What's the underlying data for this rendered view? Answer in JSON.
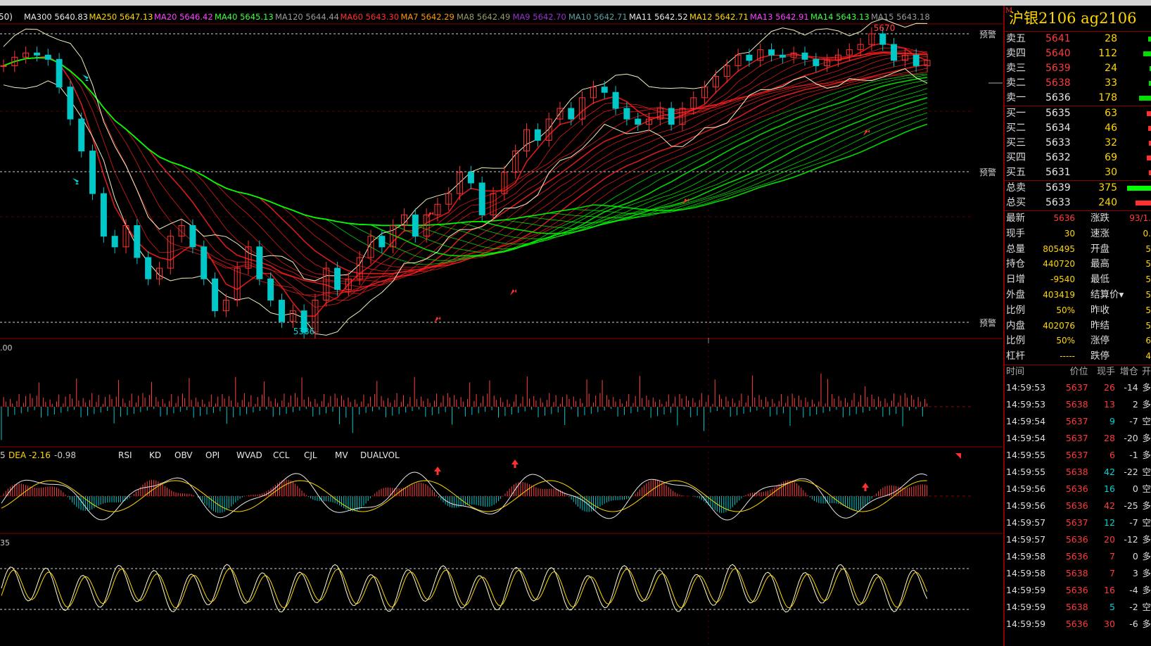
{
  "colors": {
    "up": "#ff3232",
    "down": "#00c8c8",
    "ma_green": "#00ff00",
    "ma_red": "#ff1e1e",
    "grid": "#8b0000",
    "accent": "#ffd700"
  },
  "header": {
    "prefix": "50)",
    "ma_values": [
      {
        "label": "MA300 5640.83",
        "color": "#e8e8e8"
      },
      {
        "label": "MA250 5647.13",
        "color": "#ffd700"
      },
      {
        "label": "MA20 5646.42",
        "color": "#ff40ff"
      },
      {
        "label": "MA40 5645.13",
        "color": "#40ff40"
      },
      {
        "label": "MA120 5644.44",
        "color": "#9a9a9a"
      },
      {
        "label": "MA60 5643.30",
        "color": "#ff3030"
      },
      {
        "label": "MA7 5642.29",
        "color": "#ff9900"
      },
      {
        "label": "MA8 5642.49",
        "color": "#999966"
      },
      {
        "label": "MA9 5642.70",
        "color": "#9932cc"
      },
      {
        "label": "MA10 5642.71",
        "color": "#5f9ea0"
      },
      {
        "label": "MA11 5642.52",
        "color": "#e8e8e8"
      },
      {
        "label": "MA12 5642.71",
        "color": "#ffd700"
      },
      {
        "label": "MA13 5642.91",
        "color": "#ff40ff"
      },
      {
        "label": "MA14 5643.13",
        "color": "#40ff40"
      },
      {
        "label": "MA15 5643.18",
        "color": "#9a9a9a"
      }
    ]
  },
  "price_panel": {
    "warn_label": "预警",
    "high_label": "5670",
    "low_label": "5386"
  },
  "volume_panel": {
    "label": ".00"
  },
  "macd_panel": {
    "header_left": "5",
    "dea_label": "DEA -2.16",
    "macd_value": "-0.98",
    "tabs": [
      "RSI",
      "KD",
      "OBV",
      "OPI",
      "WVAD",
      "CCL",
      "CJL",
      "MV",
      "DUALVOL"
    ]
  },
  "osc_panel": {
    "label": "35"
  },
  "chart_data": {
    "type": "candlestick",
    "title": "",
    "ylim": [
      5386,
      5670
    ],
    "close_path": [
      5640,
      5648,
      5652,
      5650,
      5646,
      5620,
      5590,
      5560,
      5520,
      5480,
      5470,
      5490,
      5460,
      5440,
      5450,
      5480,
      5490,
      5470,
      5440,
      5410,
      5420,
      5450,
      5470,
      5440,
      5420,
      5400,
      5410,
      5390,
      5420,
      5450,
      5430,
      5440,
      5460,
      5480,
      5470,
      5490,
      5500,
      5480,
      5500,
      5510,
      5520,
      5540,
      5530,
      5500,
      5520,
      5540,
      5560,
      5580,
      5570,
      5590,
      5600,
      5590,
      5610,
      5620,
      5615,
      5600,
      5590,
      5585,
      5590,
      5600,
      5585,
      5600,
      5610,
      5620,
      5630,
      5640,
      5650,
      5645,
      5655,
      5650,
      5648,
      5652,
      5646,
      5640,
      5645,
      5650,
      5655,
      5660,
      5670,
      5660,
      5645,
      5650,
      5640,
      5645
    ],
    "events": {
      "high": 5670,
      "low": 5386
    }
  },
  "sidebar": {
    "symbol_marker": "M",
    "symbol": "沪银2106  ag2106",
    "asks": [
      {
        "label": "卖五",
        "price": "5641",
        "vol": "28",
        "bar": 0.08
      },
      {
        "label": "卖四",
        "price": "5640",
        "vol": "112",
        "bar": 0.22
      },
      {
        "label": "卖三",
        "price": "5639",
        "vol": "24",
        "bar": 0.05
      },
      {
        "label": "卖二",
        "price": "5638",
        "vol": "33",
        "bar": 0.06
      },
      {
        "label": "卖一",
        "price": "5636",
        "vol": "178",
        "bar": 0.35
      }
    ],
    "bids": [
      {
        "label": "买一",
        "price": "5635",
        "vol": "63",
        "bar": 0.12
      },
      {
        "label": "买二",
        "price": "5634",
        "vol": "46",
        "bar": 0.09
      },
      {
        "label": "买三",
        "price": "5633",
        "vol": "32",
        "bar": 0.06
      },
      {
        "label": "买四",
        "price": "5632",
        "vol": "69",
        "bar": 0.13
      },
      {
        "label": "买五",
        "price": "5631",
        "vol": "30",
        "bar": 0.06
      }
    ],
    "totals": [
      {
        "label": "总卖",
        "price": "5639",
        "vol": "375",
        "bar": 0.7,
        "color": "#00ff00"
      },
      {
        "label": "总买",
        "price": "5633",
        "vol": "240",
        "bar": 0.45,
        "color": "#ff3030"
      }
    ],
    "stats": [
      {
        "l1": "最新",
        "v1": "5636",
        "l2": "涨跌",
        "v2": "93/1."
      },
      {
        "l1": "现手",
        "v1": "30",
        "l2": "速涨",
        "v2": "0."
      },
      {
        "l1": "总量",
        "v1": "805495",
        "l2": "开盘",
        "v2": "5"
      },
      {
        "l1": "持仓",
        "v1": "440720",
        "l2": "最高",
        "v2": "5"
      },
      {
        "l1": "日增",
        "v1": "-9540",
        "l2": "最低",
        "v2": "5"
      },
      {
        "l1": "外盘",
        "v1": "403419",
        "l2": "结算价",
        "v2": "5"
      },
      {
        "l1": "比例",
        "v1": "50%",
        "l2": "昨收",
        "v2": "5"
      },
      {
        "l1": "内盘",
        "v1": "402076",
        "l2": "昨结",
        "v2": "5"
      },
      {
        "l1": "比例",
        "v1": "50%",
        "l2": "涨停",
        "v2": "6"
      },
      {
        "l1": "杠杆",
        "v1": "-----",
        "l2": "跌停",
        "v2": "4"
      }
    ],
    "ticks_header": {
      "time": "时间",
      "price": "价位",
      "vol": "现手",
      "oi": "增仓",
      "type": "开"
    },
    "ticks": [
      {
        "time": "14:59:53",
        "price": "5637",
        "vol": "26",
        "oi": "-14",
        "type": "多"
      },
      {
        "time": "14:59:53",
        "price": "5638",
        "vol": "13",
        "oi": "2",
        "type": "多"
      },
      {
        "time": "14:59:54",
        "price": "5637",
        "vol": "9",
        "oi": "-7",
        "type": "空"
      },
      {
        "time": "14:59:54",
        "price": "5637",
        "vol": "28",
        "oi": "-20",
        "type": "多"
      },
      {
        "time": "14:59:55",
        "price": "5637",
        "vol": "6",
        "oi": "-1",
        "type": "多"
      },
      {
        "time": "14:59:55",
        "price": "5638",
        "vol": "42",
        "oi": "-22",
        "type": "空"
      },
      {
        "time": "14:59:56",
        "price": "5636",
        "vol": "16",
        "oi": "0",
        "type": "空"
      },
      {
        "time": "14:59:56",
        "price": "5636",
        "vol": "42",
        "oi": "-25",
        "type": "多"
      },
      {
        "time": "14:59:57",
        "price": "5637",
        "vol": "12",
        "oi": "-7",
        "type": "空"
      },
      {
        "time": "14:59:57",
        "price": "5636",
        "vol": "20",
        "oi": "-12",
        "type": "多"
      },
      {
        "time": "14:59:58",
        "price": "5636",
        "vol": "7",
        "oi": "0",
        "type": "多"
      },
      {
        "time": "14:59:58",
        "price": "5638",
        "vol": "7",
        "oi": "3",
        "type": "多"
      },
      {
        "time": "14:59:59",
        "price": "5636",
        "vol": "16",
        "oi": "-4",
        "type": "多"
      },
      {
        "time": "14:59:59",
        "price": "5638",
        "vol": "5",
        "oi": "-2",
        "type": "空"
      },
      {
        "time": "14:59:59",
        "price": "5636",
        "vol": "30",
        "oi": "-6",
        "type": "多"
      }
    ]
  }
}
